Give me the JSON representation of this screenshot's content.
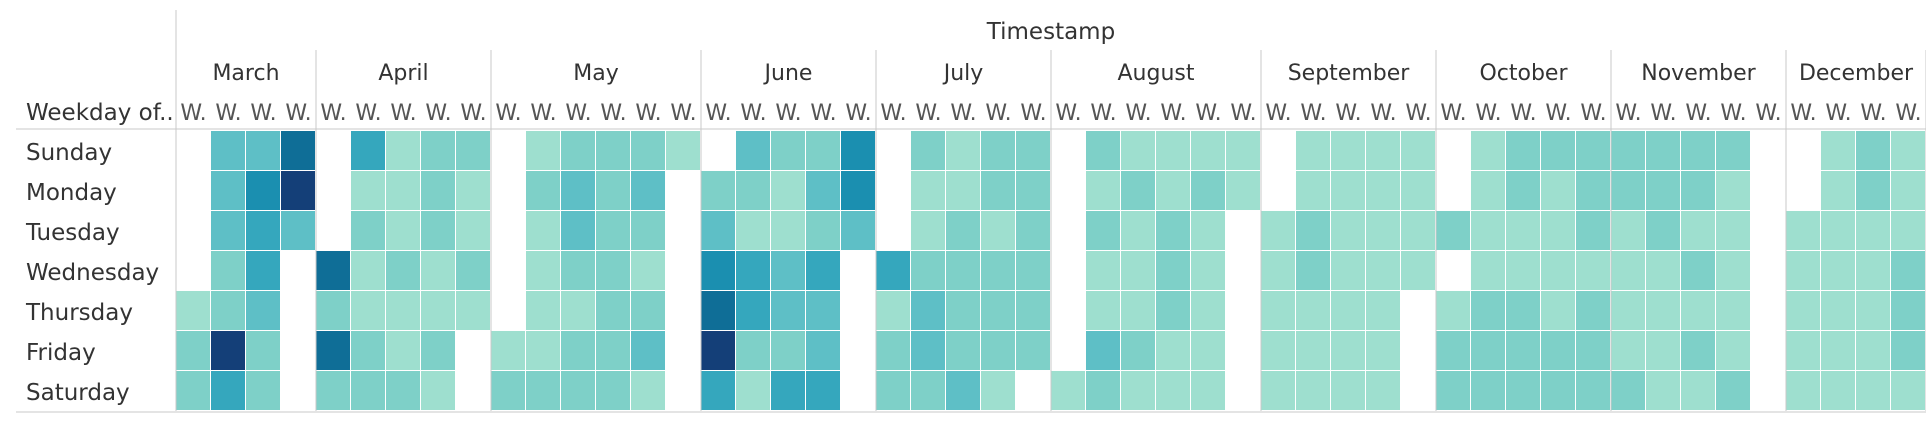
{
  "chart_data": {
    "type": "heatmap",
    "title": "Timestamp",
    "row_header": "Weekday of..",
    "column_tick_label": "W.",
    "rows": [
      "Sunday",
      "Monday",
      "Tuesday",
      "Wednesday",
      "Thursday",
      "Friday",
      "Saturday"
    ],
    "months": [
      {
        "name": "March",
        "weeks": [
          [
            null,
            3,
            3,
            6
          ],
          [
            null,
            3,
            5,
            7
          ],
          [
            null,
            3,
            4,
            3
          ],
          [
            null,
            2,
            4,
            null
          ],
          [
            1,
            2,
            3,
            null
          ],
          [
            2,
            7,
            2,
            null
          ],
          [
            2,
            4,
            2,
            null
          ]
        ]
      },
      {
        "name": "April",
        "weeks": [
          [
            null,
            4,
            1,
            2,
            2
          ],
          [
            null,
            1,
            1,
            2,
            1
          ],
          [
            null,
            2,
            1,
            2,
            1
          ],
          [
            6,
            1,
            2,
            1,
            2
          ],
          [
            2,
            1,
            1,
            1,
            1
          ],
          [
            6,
            2,
            1,
            2,
            null
          ],
          [
            2,
            2,
            2,
            1,
            null
          ]
        ]
      },
      {
        "name": "May",
        "weeks": [
          [
            null,
            1,
            2,
            2,
            2,
            1
          ],
          [
            null,
            2,
            3,
            2,
            3,
            null
          ],
          [
            null,
            1,
            3,
            2,
            2,
            null
          ],
          [
            null,
            1,
            2,
            2,
            1,
            null
          ],
          [
            null,
            1,
            1,
            2,
            2,
            null
          ],
          [
            1,
            1,
            2,
            2,
            3,
            null
          ],
          [
            2,
            2,
            2,
            2,
            1,
            null
          ]
        ]
      },
      {
        "name": "June",
        "weeks": [
          [
            null,
            3,
            2,
            2,
            5
          ],
          [
            2,
            2,
            1,
            3,
            5
          ],
          [
            3,
            1,
            1,
            2,
            3
          ],
          [
            5,
            4,
            3,
            4,
            null
          ],
          [
            6,
            4,
            3,
            3,
            null
          ],
          [
            7,
            2,
            2,
            3,
            null
          ],
          [
            4,
            1,
            4,
            4,
            null
          ]
        ]
      },
      {
        "name": "July",
        "weeks": [
          [
            null,
            2,
            1,
            2,
            2
          ],
          [
            null,
            1,
            1,
            2,
            2
          ],
          [
            null,
            1,
            2,
            1,
            2
          ],
          [
            4,
            2,
            2,
            2,
            2
          ],
          [
            1,
            3,
            2,
            2,
            2
          ],
          [
            2,
            3,
            2,
            2,
            2
          ],
          [
            2,
            2,
            3,
            1,
            null
          ]
        ]
      },
      {
        "name": "August",
        "weeks": [
          [
            null,
            2,
            1,
            1,
            1,
            1
          ],
          [
            null,
            1,
            2,
            1,
            2,
            1
          ],
          [
            null,
            2,
            1,
            2,
            1,
            null
          ],
          [
            null,
            1,
            1,
            2,
            1,
            null
          ],
          [
            null,
            1,
            1,
            2,
            1,
            null
          ],
          [
            null,
            3,
            2,
            1,
            1,
            null
          ],
          [
            1,
            2,
            1,
            1,
            1,
            null
          ]
        ]
      },
      {
        "name": "September",
        "weeks": [
          [
            null,
            1,
            1,
            1,
            1
          ],
          [
            null,
            1,
            1,
            1,
            1
          ],
          [
            1,
            2,
            1,
            1,
            1
          ],
          [
            1,
            2,
            1,
            1,
            1
          ],
          [
            1,
            1,
            1,
            1,
            null
          ],
          [
            1,
            1,
            1,
            1,
            null
          ],
          [
            1,
            1,
            1,
            1,
            null
          ]
        ]
      },
      {
        "name": "October",
        "weeks": [
          [
            null,
            1,
            2,
            2,
            2
          ],
          [
            null,
            1,
            2,
            1,
            2
          ],
          [
            2,
            1,
            1,
            1,
            2
          ],
          [
            null,
            1,
            1,
            1,
            1
          ],
          [
            1,
            2,
            2,
            1,
            2
          ],
          [
            2,
            2,
            2,
            2,
            2
          ],
          [
            2,
            2,
            2,
            2,
            2
          ]
        ]
      },
      {
        "name": "November",
        "weeks": [
          [
            2,
            2,
            2,
            2,
            null
          ],
          [
            2,
            2,
            2,
            1,
            null
          ],
          [
            1,
            2,
            1,
            1,
            null
          ],
          [
            1,
            1,
            2,
            1,
            null
          ],
          [
            1,
            1,
            1,
            1,
            null
          ],
          [
            1,
            1,
            2,
            1,
            null
          ],
          [
            2,
            1,
            1,
            2,
            null
          ]
        ]
      },
      {
        "name": "December",
        "weeks": [
          [
            null,
            1,
            2,
            1
          ],
          [
            null,
            1,
            2,
            1
          ],
          [
            1,
            1,
            1,
            1
          ],
          [
            1,
            1,
            1,
            2
          ],
          [
            1,
            1,
            1,
            2
          ],
          [
            1,
            1,
            1,
            2
          ],
          [
            1,
            1,
            1,
            1
          ]
        ]
      }
    ],
    "color_scale": [
      "#ffffff",
      "#9edfcf",
      "#7ed0c8",
      "#5ebfc6",
      "#35a7bd",
      "#1b8fb0",
      "#0f6e97",
      "#143f78"
    ],
    "grid": false
  }
}
